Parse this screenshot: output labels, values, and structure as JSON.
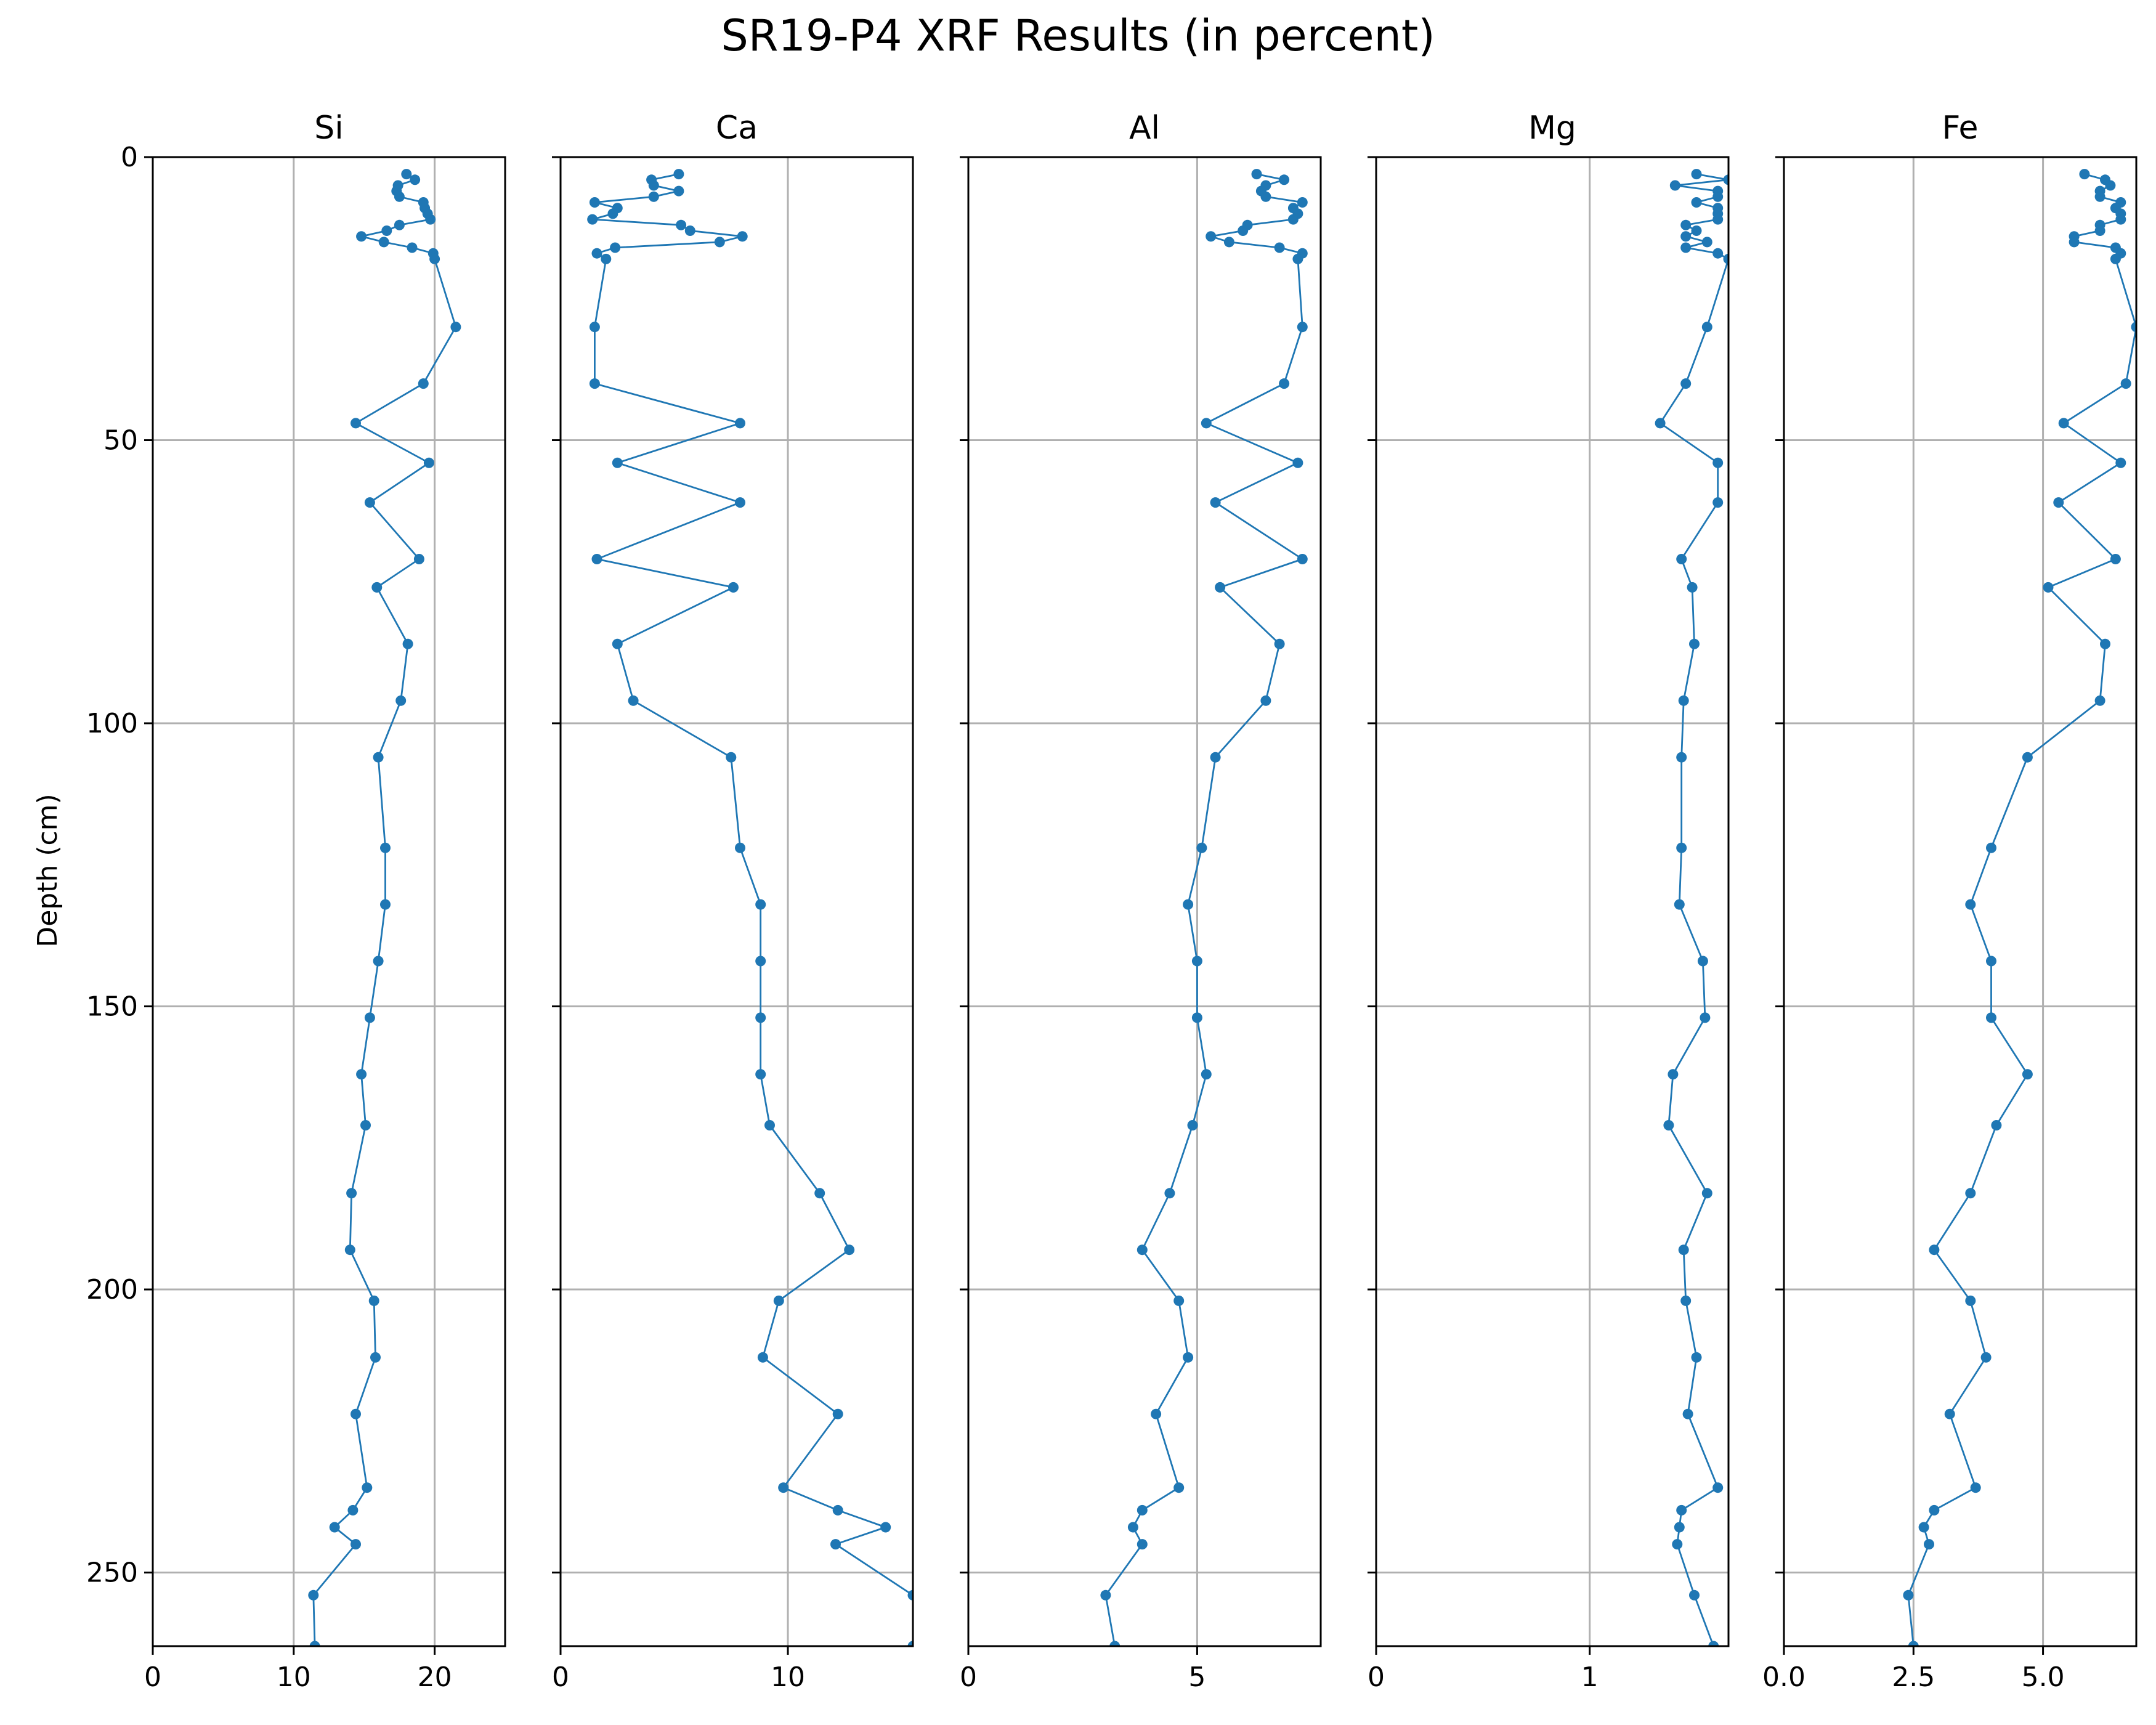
{
  "title": "SR19-P4 XRF Results (in percent)",
  "ylabel": "Depth (cm)",
  "chart_data": {
    "type": "line",
    "title": "SR19-P4 XRF Results (in percent)",
    "ylabel": "Depth (cm)",
    "y_axis_inverted": true,
    "ylim": [
      0,
      263
    ],
    "yticks": [
      0,
      50,
      100,
      150,
      200,
      250
    ],
    "grid": true,
    "series_color": "#1f77b4",
    "marker": "circle",
    "depth": [
      3,
      4,
      5,
      6,
      7,
      8,
      9,
      10,
      11,
      12,
      13,
      14,
      15,
      16,
      17,
      18,
      30,
      40,
      47,
      54,
      61,
      71,
      76,
      86,
      96,
      106,
      122,
      132,
      142,
      152,
      162,
      171,
      183,
      193,
      202,
      212,
      222,
      235,
      239,
      242,
      245,
      254,
      263
    ],
    "panels": [
      {
        "name": "Si",
        "xlim": [
          0,
          25
        ],
        "xticks": [
          0,
          10,
          20
        ],
        "xticklabels": [
          "0",
          "10",
          "20"
        ],
        "values": [
          18.0,
          18.6,
          17.4,
          17.3,
          17.5,
          19.2,
          19.3,
          19.5,
          19.7,
          17.5,
          16.6,
          14.8,
          16.4,
          18.4,
          19.9,
          20.0,
          21.5,
          19.2,
          14.4,
          19.6,
          15.4,
          18.9,
          15.9,
          18.1,
          17.6,
          16.0,
          16.5,
          16.5,
          16.0,
          15.4,
          14.8,
          15.1,
          14.1,
          14.0,
          15.7,
          15.8,
          14.4,
          15.2,
          14.2,
          12.9,
          14.4,
          11.4,
          11.5
        ]
      },
      {
        "name": "Ca",
        "xlim": [
          0,
          15.5
        ],
        "xticks": [
          0,
          10
        ],
        "xticklabels": [
          "0",
          "10"
        ],
        "values": [
          5.2,
          4.0,
          4.1,
          5.2,
          4.1,
          1.5,
          2.5,
          2.3,
          1.4,
          5.3,
          5.7,
          8.0,
          7.0,
          2.4,
          1.6,
          2.0,
          1.5,
          1.5,
          7.9,
          2.5,
          7.9,
          1.6,
          7.6,
          2.5,
          3.2,
          7.5,
          7.9,
          8.8,
          8.8,
          8.8,
          8.8,
          9.2,
          11.4,
          12.7,
          9.6,
          8.9,
          12.2,
          9.8,
          12.2,
          14.3,
          12.1,
          15.5,
          15.5
        ]
      },
      {
        "name": "Al",
        "xlim": [
          0,
          7.7
        ],
        "xticks": [
          0,
          5
        ],
        "xticklabels": [
          "0",
          "5"
        ],
        "values": [
          6.3,
          6.9,
          6.5,
          6.4,
          6.5,
          7.3,
          7.1,
          7.2,
          7.1,
          6.1,
          6.0,
          5.3,
          5.7,
          6.8,
          7.3,
          7.2,
          7.3,
          6.9,
          5.2,
          7.2,
          5.4,
          7.3,
          5.5,
          6.8,
          6.5,
          5.4,
          5.1,
          4.8,
          5.0,
          5.0,
          5.2,
          4.9,
          4.4,
          3.8,
          4.6,
          4.8,
          4.1,
          4.6,
          3.8,
          3.6,
          3.8,
          3.0,
          3.2
        ]
      },
      {
        "name": "Mg",
        "xlim": [
          0,
          1.65
        ],
        "xticks": [
          0,
          1
        ],
        "xticklabels": [
          "0",
          "1"
        ],
        "values": [
          1.5,
          1.65,
          1.4,
          1.6,
          1.6,
          1.5,
          1.6,
          1.6,
          1.6,
          1.45,
          1.5,
          1.45,
          1.55,
          1.45,
          1.6,
          1.65,
          1.55,
          1.45,
          1.33,
          1.6,
          1.6,
          1.43,
          1.48,
          1.49,
          1.44,
          1.43,
          1.43,
          1.42,
          1.53,
          1.54,
          1.39,
          1.37,
          1.55,
          1.44,
          1.45,
          1.5,
          1.46,
          1.6,
          1.43,
          1.42,
          1.41,
          1.49,
          1.58
        ]
      },
      {
        "name": "Fe",
        "xlim": [
          0,
          6.8
        ],
        "xticks": [
          0,
          2.5,
          5
        ],
        "xticklabels": [
          "0.0",
          "2.5",
          "5.0"
        ],
        "values": [
          5.8,
          6.2,
          6.3,
          6.1,
          6.1,
          6.5,
          6.4,
          6.5,
          6.5,
          6.1,
          6.1,
          5.6,
          5.6,
          6.4,
          6.5,
          6.4,
          6.8,
          6.6,
          5.4,
          6.5,
          5.3,
          6.4,
          5.1,
          6.2,
          6.1,
          4.7,
          4.0,
          3.6,
          4.0,
          4.0,
          4.7,
          4.1,
          3.6,
          2.9,
          3.6,
          3.9,
          3.2,
          3.7,
          2.9,
          2.7,
          2.8,
          2.4,
          2.5
        ]
      }
    ]
  }
}
